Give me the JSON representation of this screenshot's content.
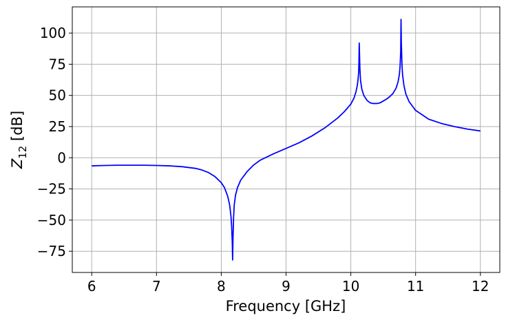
{
  "chart_data": {
    "type": "line",
    "xlabel": "Frequency [GHz]",
    "ylabel_main": "Z",
    "ylabel_sub": "12",
    "ylabel_unit": " [dB]",
    "xlim": [
      5.7,
      12.3
    ],
    "ylim": [
      -92,
      121
    ],
    "xticks": [
      6,
      7,
      8,
      9,
      10,
      11,
      12
    ],
    "xtick_labels": [
      "6",
      "7",
      "8",
      "9",
      "10",
      "11",
      "12"
    ],
    "yticks": [
      100,
      75,
      50,
      25,
      0,
      -25,
      -50,
      -75
    ],
    "ytick_labels": [
      "100",
      "75",
      "50",
      "25",
      "0",
      "−25",
      "−50",
      "−75"
    ],
    "grid": true,
    "series": [
      {
        "color": "#0000ff",
        "x": [
          6.0,
          6.2,
          6.4,
          6.6,
          6.8,
          7.0,
          7.2,
          7.4,
          7.6,
          7.7,
          7.8,
          7.9,
          8.0,
          8.05,
          8.1,
          8.13,
          8.15,
          8.16,
          8.17,
          8.175,
          8.18,
          8.19,
          8.2,
          8.22,
          8.25,
          8.3,
          8.4,
          8.5,
          8.6,
          8.8,
          9.0,
          9.2,
          9.4,
          9.6,
          9.8,
          9.9,
          10.0,
          10.05,
          10.08,
          10.1,
          10.11,
          10.12,
          10.125,
          10.13,
          10.14,
          10.15,
          10.17,
          10.2,
          10.25,
          10.3,
          10.35,
          10.4,
          10.45,
          10.5,
          10.55,
          10.6,
          10.65,
          10.7,
          10.73,
          10.75,
          10.76,
          10.77,
          10.775,
          10.78,
          10.79,
          10.8,
          10.82,
          10.85,
          10.9,
          11.0,
          11.2,
          11.4,
          11.6,
          11.8,
          12.0
        ],
        "y": [
          -6.5,
          -6.2,
          -6.0,
          -6.0,
          -6.0,
          -6.2,
          -6.5,
          -7.2,
          -8.5,
          -9.8,
          -11.8,
          -15.0,
          -20.0,
          -24.0,
          -31.0,
          -38.0,
          -47.0,
          -55.0,
          -68.0,
          -82.0,
          -67.0,
          -48.0,
          -38.0,
          -30.0,
          -24.0,
          -18.0,
          -11.0,
          -5.8,
          -2.0,
          3.0,
          7.5,
          12.0,
          17.5,
          24.0,
          32.0,
          37.0,
          43.0,
          48.0,
          53.0,
          58.0,
          62.0,
          68.0,
          76.0,
          92.0,
          72.0,
          62.0,
          55.0,
          50.0,
          46.0,
          44.0,
          43.5,
          43.5,
          44.0,
          45.5,
          47.0,
          49.0,
          51.5,
          56.0,
          61.0,
          67.0,
          73.0,
          85.0,
          111.0,
          92.0,
          74.0,
          66.0,
          58.0,
          51.0,
          45.0,
          38.0,
          31.0,
          27.5,
          25.0,
          23.0,
          21.5
        ]
      }
    ]
  }
}
